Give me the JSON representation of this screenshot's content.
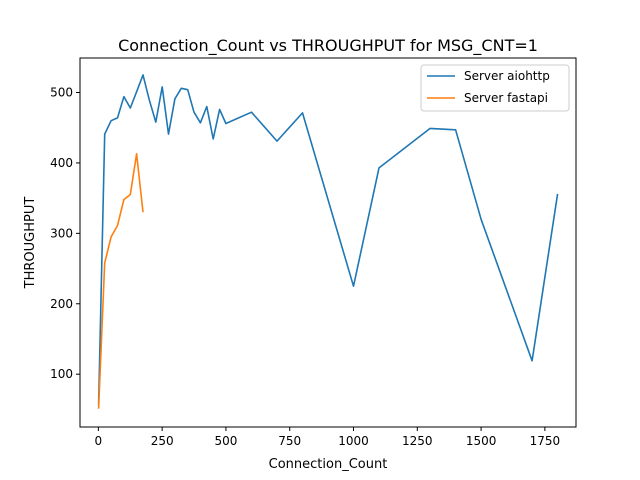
{
  "chart_data": {
    "type": "line",
    "title": "Connection_Count vs THROUGHPUT for MSG_CNT=1",
    "xlabel": "Connection_Count",
    "ylabel": "THROUGHPUT",
    "xlim": [
      -72,
      1872
    ],
    "ylim": [
      25,
      549
    ],
    "xticks": [
      0,
      250,
      500,
      750,
      1000,
      1250,
      1500,
      1750
    ],
    "yticks": [
      100,
      200,
      300,
      400,
      500
    ],
    "grid": false,
    "legend_position": "top-right",
    "series": [
      {
        "name": "Server aiohttp",
        "color": "#1f77b4",
        "points": [
          [
            1,
            56
          ],
          [
            25,
            441
          ],
          [
            50,
            460
          ],
          [
            75,
            464
          ],
          [
            100,
            494
          ],
          [
            125,
            478
          ],
          [
            150,
            501
          ],
          [
            175,
            525
          ],
          [
            200,
            489
          ],
          [
            225,
            458
          ],
          [
            250,
            508
          ],
          [
            275,
            441
          ],
          [
            300,
            491
          ],
          [
            325,
            506
          ],
          [
            350,
            504
          ],
          [
            375,
            472
          ],
          [
            400,
            457
          ],
          [
            425,
            480
          ],
          [
            450,
            434
          ],
          [
            475,
            476
          ],
          [
            500,
            456
          ],
          [
            600,
            472
          ],
          [
            700,
            431
          ],
          [
            800,
            471
          ],
          [
            1000,
            225
          ],
          [
            1100,
            393
          ],
          [
            1300,
            449
          ],
          [
            1400,
            447
          ],
          [
            1500,
            320
          ],
          [
            1700,
            119
          ],
          [
            1800,
            356
          ]
        ]
      },
      {
        "name": "Server fastapi",
        "color": "#ff7f0e",
        "points": [
          [
            1,
            51
          ],
          [
            25,
            258
          ],
          [
            50,
            295
          ],
          [
            75,
            311
          ],
          [
            100,
            348
          ],
          [
            125,
            355
          ],
          [
            150,
            413
          ],
          [
            175,
            330
          ]
        ]
      }
    ]
  }
}
